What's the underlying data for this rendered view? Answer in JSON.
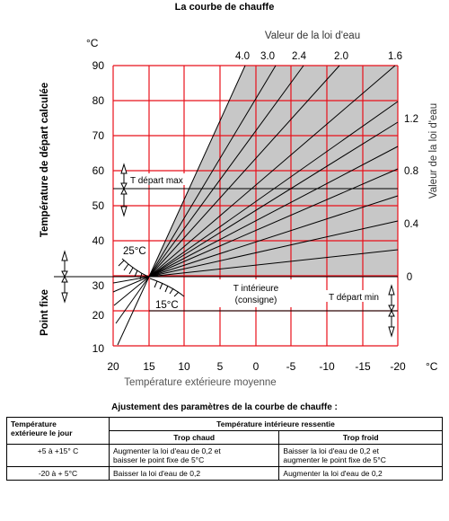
{
  "title": "La courbe de chauffe",
  "chart": {
    "y_unit": "°C",
    "x_unit": "°C",
    "y_ticks": [
      "90",
      "80",
      "70",
      "60",
      "50",
      "40",
      "30",
      "20",
      "10"
    ],
    "x_ticks": [
      "20",
      "15",
      "10",
      "5",
      "0",
      "-5",
      "-10",
      "-15",
      "-20"
    ],
    "y_label": "Température de départ calculée",
    "x_label": "Température extérieure moyenne",
    "top_label": "Valeur de la loi d'eau",
    "right_label": "Valeur de la loi d'eau",
    "top_values": [
      "4.0",
      "3.0",
      "2.4",
      "2.0",
      "1.6"
    ],
    "right_values": [
      "1.2",
      "0.8",
      "0.4",
      "0"
    ],
    "point_fixe_label": "Point fixe",
    "t_depart_max": "T départ max",
    "t_depart_min": "T départ min",
    "t_interieure_line1": "T intérieure",
    "t_interieure_line2": "(consigne)",
    "label_25": "25°C",
    "label_15": "15°C",
    "grid_color": "#e8101a",
    "shade_color": "#c7c7c7"
  },
  "subtitle": "Ajustement des paramètres de la courbe de chauffe :",
  "table": {
    "h_col1_line1": "Température",
    "h_col1_line2": "extérieure le jour",
    "h_group": "Température intérieure ressentie",
    "h_col2": "Trop chaud",
    "h_col3": "Trop froid",
    "rows": [
      {
        "range": "+5 à +15° C",
        "chaud_line1": "Augmenter la loi d'eau de 0,2 et",
        "chaud_line2": "baisser le point fixe de 5°C",
        "froid_line1": "Baisser la loi d'eau de 0,2 et",
        "froid_line2": "augmenter le point fixe de 5°C"
      },
      {
        "range": "-20 à + 5°C",
        "chaud_line1": "Baisser la loi d'eau de 0,2",
        "froid_line1": "Augmenter la loi d'eau de 0,2"
      }
    ]
  }
}
